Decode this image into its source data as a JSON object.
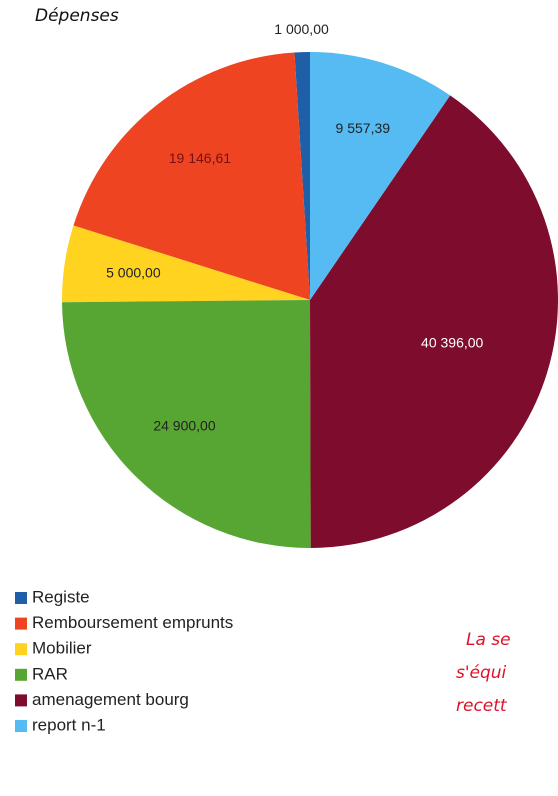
{
  "chart_data": {
    "type": "pie",
    "title": "Dépenses",
    "categories": [
      "Registe",
      "Remboursement emprunts",
      "Mobilier",
      "RAR",
      "amenagement bourg",
      "report n-1"
    ],
    "values": [
      1000,
      19146.61,
      5000,
      24900,
      40396,
      9557.39
    ],
    "value_labels": [
      "1 000,00",
      "19 146,61",
      "5 000,00",
      "24 900,00",
      "40 396,00",
      "9 557,39"
    ],
    "colors": [
      "#1f5fa8",
      "#ee4422",
      "#ffd320",
      "#57a633",
      "#7e0c2c",
      "#55bbf2"
    ],
    "legend": "bottom-left"
  },
  "annotation_lines": [
    "La se",
    "s'équi",
    "recett"
  ]
}
